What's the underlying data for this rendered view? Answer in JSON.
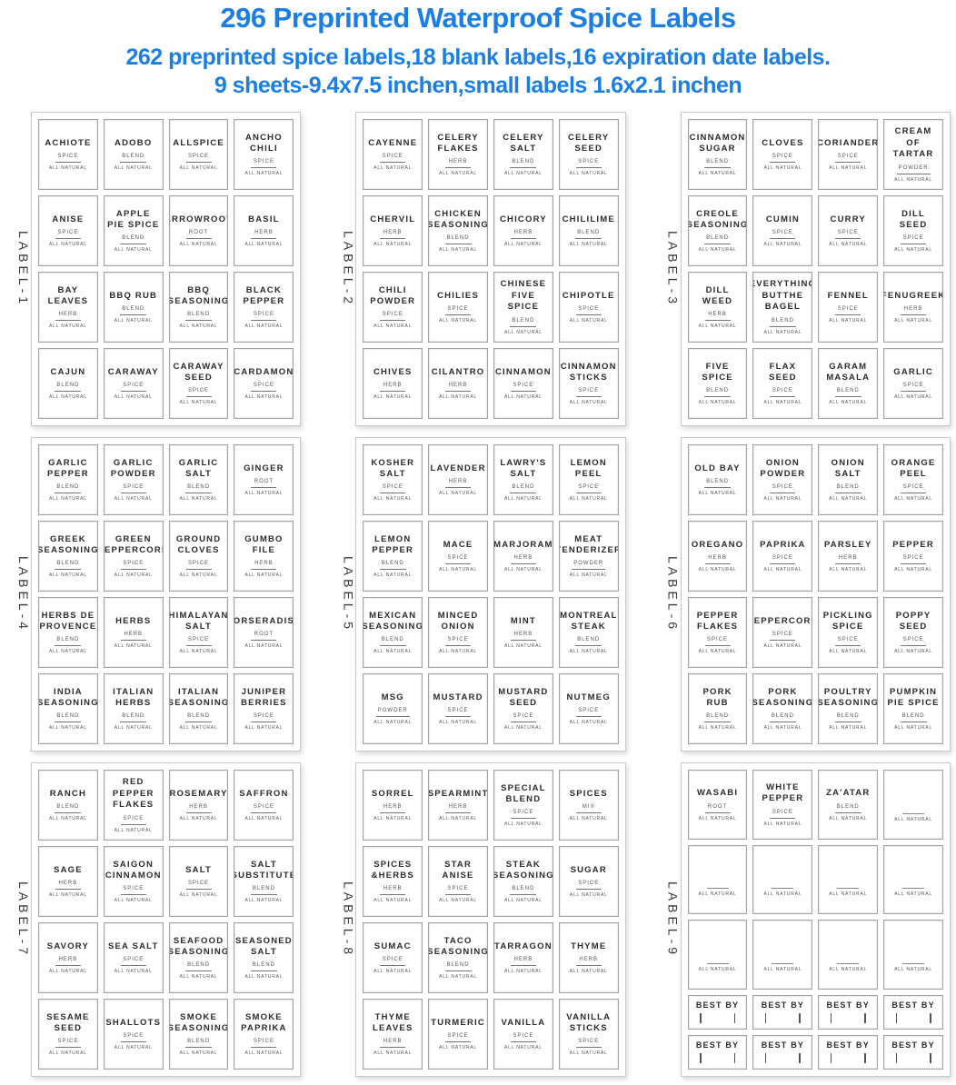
{
  "header": {
    "title": "296 Preprinted Waterproof Spice Labels",
    "subtitle1": "262 preprinted spice labels,18 blank labels,16 expiration date labels.",
    "subtitle2": "9 sheets-9.4x7.5 inchen,small labels 1.6x2.1 inchen",
    "accent_color": "#1B7EE6"
  },
  "label_meta": {
    "all_natural": "ALL NATURAL",
    "best_by": "BEST BY"
  },
  "sheets": [
    {
      "name": "LABEL-1",
      "layout": "grid4x4",
      "labels": [
        {
          "name": "ACHIOTE",
          "type": "SPICE"
        },
        {
          "name": "ADOBO",
          "type": "BLEND"
        },
        {
          "name": "ALLSPICE",
          "type": "SPICE"
        },
        {
          "name": "ANCHO CHILI",
          "type": "SPICE"
        },
        {
          "name": "ANISE",
          "type": "SPICE"
        },
        {
          "name": "APPLE PIE SPICE",
          "type": "BLEND"
        },
        {
          "name": "ARROWROOT",
          "type": "ROOT"
        },
        {
          "name": "BASIL",
          "type": "HERB"
        },
        {
          "name": "BAY LEAVES",
          "type": "HERB"
        },
        {
          "name": "BBQ RUB",
          "type": "BLEND"
        },
        {
          "name": "BBQ SEASONING",
          "type": "BLEND"
        },
        {
          "name": "BLACK PEPPER",
          "type": "SPICE"
        },
        {
          "name": "CAJUN",
          "type": "BLEND"
        },
        {
          "name": "CARAWAY",
          "type": "SPICE"
        },
        {
          "name": "CARAWAY SEED",
          "type": "SPICE"
        },
        {
          "name": "CARDAMON",
          "type": "SPICE"
        }
      ]
    },
    {
      "name": "LABEL-2",
      "layout": "grid4x4",
      "labels": [
        {
          "name": "CAYENNE",
          "type": "SPICE"
        },
        {
          "name": "CELERY FLAKES",
          "type": "HERB"
        },
        {
          "name": "CELERY SALT",
          "type": "BLEND"
        },
        {
          "name": "CELERY SEED",
          "type": "SPICE"
        },
        {
          "name": "CHERVIL",
          "type": "HERB"
        },
        {
          "name": "CHICKEN SEASONING",
          "type": "BLEND"
        },
        {
          "name": "CHICORY",
          "type": "HERB"
        },
        {
          "name": "CHILILIME",
          "type": "BLEND"
        },
        {
          "name": "CHILI POWDER",
          "type": "SPICE"
        },
        {
          "name": "CHILIES",
          "type": "SPICE"
        },
        {
          "name": "CHINESE FIVE SPICE",
          "type": "BLEND"
        },
        {
          "name": "CHIPOTLE",
          "type": "SPICE"
        },
        {
          "name": "CHIVES",
          "type": "HERB"
        },
        {
          "name": "CILANTRO",
          "type": "HERB"
        },
        {
          "name": "CINNAMON",
          "type": "SPICE"
        },
        {
          "name": "CINNAMON STICKS",
          "type": "SPICE"
        }
      ]
    },
    {
      "name": "LABEL-3",
      "layout": "grid4x4",
      "labels": [
        {
          "name": "CINNAMON SUGAR",
          "type": "BLEND"
        },
        {
          "name": "CLOVES",
          "type": "SPICE"
        },
        {
          "name": "CORIANDER",
          "type": "SPICE"
        },
        {
          "name": "CREAM OF TARTAR",
          "type": "POWDER"
        },
        {
          "name": "CREOLE SEASONING",
          "type": "BLEND"
        },
        {
          "name": "CUMIN",
          "type": "SPICE"
        },
        {
          "name": "CURRY",
          "type": "SPICE"
        },
        {
          "name": "DILL SEED",
          "type": "SPICE"
        },
        {
          "name": "DILL WEED",
          "type": "HERB"
        },
        {
          "name": "EVERYTHING BUTTHE BAGEL",
          "type": "BLEND"
        },
        {
          "name": "FENNEL",
          "type": "SPICE"
        },
        {
          "name": "FENUGREEK",
          "type": "HERB"
        },
        {
          "name": "FIVE SPICE",
          "type": "BLEND"
        },
        {
          "name": "FLAX SEED",
          "type": "SPICE"
        },
        {
          "name": "GARAM MASALA",
          "type": "BLEND"
        },
        {
          "name": "GARLIC",
          "type": "SPICE"
        }
      ]
    },
    {
      "name": "LABEL-4",
      "layout": "grid4x4",
      "labels": [
        {
          "name": "GARLIC PEPPER",
          "type": "BLEND"
        },
        {
          "name": "GARLIC POWDER",
          "type": "SPICE"
        },
        {
          "name": "GARLIC SALT",
          "type": "BLEND"
        },
        {
          "name": "GINGER",
          "type": "ROOT"
        },
        {
          "name": "GREEK SEASONING",
          "type": "BLEND"
        },
        {
          "name": "GREEN PEPPERCORN",
          "type": "SPICE"
        },
        {
          "name": "GROUND CLOVES",
          "type": "SPICE"
        },
        {
          "name": "GUMBO FILE",
          "type": "HERB"
        },
        {
          "name": "HERBS DE PROVENCE",
          "type": "BLEND"
        },
        {
          "name": "HERBS",
          "type": "HERB"
        },
        {
          "name": "HIMALAYAN SALT",
          "type": "SPICE"
        },
        {
          "name": "HORSERADISH",
          "type": "ROOT"
        },
        {
          "name": "INDIA SEASONING",
          "type": "BLEND"
        },
        {
          "name": "ITALIAN HERBS",
          "type": "BLEND"
        },
        {
          "name": "ITALIAN SEASONING",
          "type": "BLEND"
        },
        {
          "name": "JUNIPER BERRIES",
          "type": "SPICE"
        }
      ]
    },
    {
      "name": "LABEL-5",
      "layout": "grid4x4",
      "labels": [
        {
          "name": "KOSHER SALT",
          "type": "SPICE"
        },
        {
          "name": "LAVENDER",
          "type": "HERB"
        },
        {
          "name": "LAWRY'S SALT",
          "type": "BLEND"
        },
        {
          "name": "LEMON PEEL",
          "type": "SPICE"
        },
        {
          "name": "LEMON PEPPER",
          "type": "BLEND"
        },
        {
          "name": "MACE",
          "type": "SPICE"
        },
        {
          "name": "MARJORAM",
          "type": "HERB"
        },
        {
          "name": "MEAT TENDERIZER",
          "type": "POWDER"
        },
        {
          "name": "MEXICAN SEASONING",
          "type": "BLEND"
        },
        {
          "name": "MINCED ONION",
          "type": "SPICE"
        },
        {
          "name": "MINT",
          "type": "HERB"
        },
        {
          "name": "MONTREAL STEAK",
          "type": "BLEND"
        },
        {
          "name": "MSG",
          "type": "POWDER"
        },
        {
          "name": "MUSTARD",
          "type": "SPICE"
        },
        {
          "name": "MUSTARD SEED",
          "type": "SPICE"
        },
        {
          "name": "NUTMEG",
          "type": "SPICE"
        }
      ]
    },
    {
      "name": "LABEL-6",
      "layout": "grid4x4",
      "labels": [
        {
          "name": "OLD BAY",
          "type": "BLEND"
        },
        {
          "name": "ONION POWDER",
          "type": "SPICE"
        },
        {
          "name": "ONION SALT",
          "type": "BLEND"
        },
        {
          "name": "ORANGE PEEL",
          "type": "SPICE"
        },
        {
          "name": "OREGANO",
          "type": "HERB"
        },
        {
          "name": "PAPRIKA",
          "type": "SPICE"
        },
        {
          "name": "PARSLEY",
          "type": "HERB"
        },
        {
          "name": "PEPPER",
          "type": "SPICE"
        },
        {
          "name": "PEPPER FLAKES",
          "type": "SPICE"
        },
        {
          "name": "PEPPERCORN",
          "type": "SPICE"
        },
        {
          "name": "PICKLING SPICE",
          "type": "SPICE"
        },
        {
          "name": "POPPY SEED",
          "type": "SPICE"
        },
        {
          "name": "PORK RUB",
          "type": "BLEND"
        },
        {
          "name": "PORK SEASONING",
          "type": "BLEND"
        },
        {
          "name": "POULTRY SEASONING",
          "type": "BLEND"
        },
        {
          "name": "PUMPKIN PIE SPICE",
          "type": "BLEND"
        }
      ]
    },
    {
      "name": "LABEL-7",
      "layout": "grid4x4",
      "labels": [
        {
          "name": "RANCH",
          "type": "BLEND"
        },
        {
          "name": "RED PEPPER FLAKES",
          "type": "SPICE"
        },
        {
          "name": "ROSEMARY",
          "type": "HERB"
        },
        {
          "name": "SAFFRON",
          "type": "SPICE"
        },
        {
          "name": "SAGE",
          "type": "HERB"
        },
        {
          "name": "SAIGON CINNAMON",
          "type": "SPICE"
        },
        {
          "name": "SALT",
          "type": "SPICE"
        },
        {
          "name": "SALT SUBSTITUTE",
          "type": "BLEND"
        },
        {
          "name": "SAVORY",
          "type": "HERB"
        },
        {
          "name": "SEA SALT",
          "type": "SPICE"
        },
        {
          "name": "SEAFOOD SEASONING",
          "type": "BLEND"
        },
        {
          "name": "SEASONED SALT",
          "type": "BLEND"
        },
        {
          "name": "SESAME SEED",
          "type": "SPICE"
        },
        {
          "name": "SHALLOTS",
          "type": "SPICE"
        },
        {
          "name": "SMOKE SEASONING",
          "type": "BLEND"
        },
        {
          "name": "SMOKE PAPRIKA",
          "type": "SPICE"
        }
      ]
    },
    {
      "name": "LABEL-8",
      "layout": "grid4x4",
      "labels": [
        {
          "name": "SORREL",
          "type": "HERB"
        },
        {
          "name": "SPEARMINT",
          "type": "HERB"
        },
        {
          "name": "SPECIAL BLEND",
          "type": "SPICE"
        },
        {
          "name": "SPICES",
          "type": "MIX"
        },
        {
          "name": "SPICES &HERBS",
          "type": "HERB"
        },
        {
          "name": "STAR ANISE",
          "type": "SPICE"
        },
        {
          "name": "STEAK SEASONING",
          "type": "BLEND"
        },
        {
          "name": "SUGAR",
          "type": "SPICE"
        },
        {
          "name": "SUMAC",
          "type": "SPICE"
        },
        {
          "name": "TACO SEASONING",
          "type": "BLEND"
        },
        {
          "name": "TARRAGON",
          "type": "HERB"
        },
        {
          "name": "THYME",
          "type": "HERB"
        },
        {
          "name": "THYME LEAVES",
          "type": "HERB"
        },
        {
          "name": "TURMERIC",
          "type": "SPICE"
        },
        {
          "name": "VANILLA",
          "type": "SPICE"
        },
        {
          "name": "VANILLA STICKS",
          "type": "SPICE"
        }
      ]
    },
    {
      "name": "LABEL-9",
      "layout": "mixed",
      "labels": [
        {
          "name": "WASABI",
          "type": "ROOT"
        },
        {
          "name": "WHITE PEPPER",
          "type": "SPICE"
        },
        {
          "name": "ZA'ATAR",
          "type": "BLEND"
        },
        {
          "kind": "blank"
        },
        {
          "kind": "blank"
        },
        {
          "kind": "blank"
        },
        {
          "kind": "blank"
        },
        {
          "kind": "blank"
        },
        {
          "kind": "blank"
        },
        {
          "kind": "blank"
        },
        {
          "kind": "blank"
        },
        {
          "kind": "blank"
        },
        {
          "kind": "bestby"
        },
        {
          "kind": "bestby"
        },
        {
          "kind": "bestby"
        },
        {
          "kind": "bestby"
        },
        {
          "kind": "bestby"
        },
        {
          "kind": "bestby"
        },
        {
          "kind": "bestby"
        },
        {
          "kind": "bestby"
        }
      ]
    }
  ]
}
